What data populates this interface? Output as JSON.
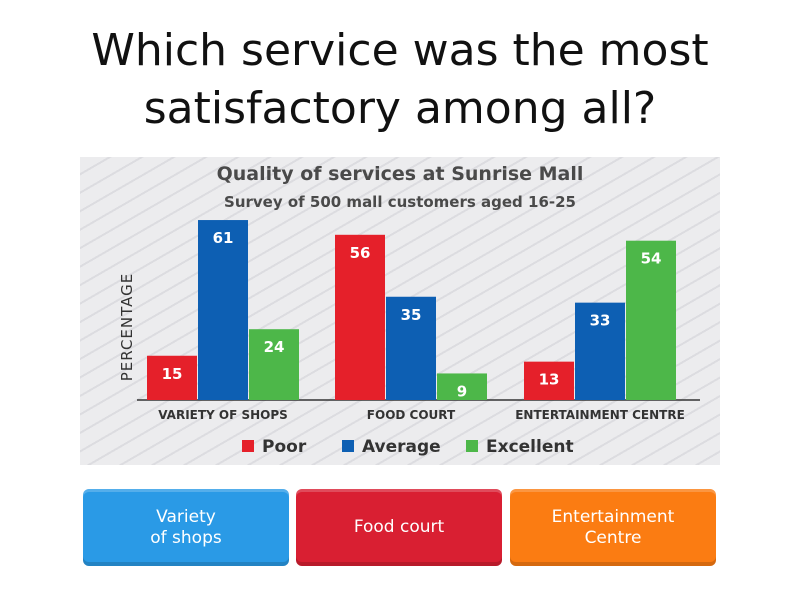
{
  "question": {
    "line1": "Which service was the most",
    "line2": "satisfactory among all?"
  },
  "answers": [
    {
      "line1": "Variety",
      "line2": "of shops",
      "color": "#2a9ae6"
    },
    {
      "line1": "Food court",
      "line2": "",
      "color": "#d91f32"
    },
    {
      "line1": "Entertainment",
      "line2": "Centre",
      "color": "#fb7c12"
    }
  ],
  "chart_data": {
    "type": "bar",
    "title": "Quality of services at Sunrise Mall",
    "subtitle": "Survey of 500 mall customers aged 16-25",
    "ylabel": "PERCENTAGE",
    "xlabel": "",
    "categories": [
      "VARIETY OF SHOPS",
      "FOOD COURT",
      "ENTERTAINMENT CENTRE"
    ],
    "series": [
      {
        "name": "Poor",
        "color": "#e5202a",
        "values": [
          15,
          56,
          13
        ]
      },
      {
        "name": "Average",
        "color": "#0d5fb3",
        "values": [
          61,
          35,
          33
        ]
      },
      {
        "name": "Excellent",
        "color": "#4db749",
        "values": [
          24,
          9,
          54
        ]
      }
    ],
    "ylim": [
      0,
      61
    ],
    "legend": "bottom"
  }
}
